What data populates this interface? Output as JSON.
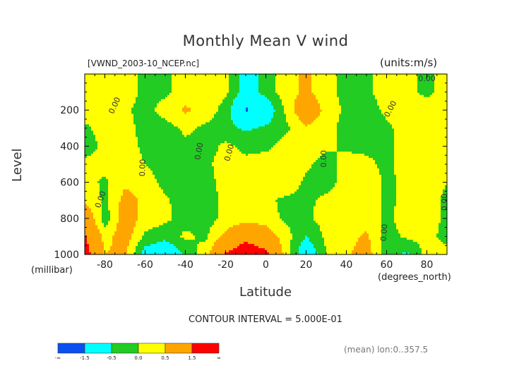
{
  "chart_data": {
    "type": "heatmap",
    "title": "Monthly Mean V wind",
    "subtitle_left": "[VWND_2003-10_NCEP.nc]",
    "subtitle_right": "(units:m/s)",
    "ylabel": "Level",
    "yunit": "(millibar)",
    "xlabel": "Latitude",
    "xunit": "(degrees_north)",
    "xlim": [
      -90,
      90
    ],
    "ylim": [
      1000,
      0
    ],
    "y_inverted": true,
    "x_ticks": [
      -80,
      -60,
      -40,
      -20,
      0,
      20,
      40,
      60,
      80
    ],
    "y_ticks": [
      200,
      400,
      600,
      800,
      1000
    ],
    "contour_label": "0.00",
    "contour_interval_text": "CONTOUR INTERVAL = 5.000E-01",
    "annotation": "(mean) lon:0..357.5",
    "levels": [
      -1.5,
      -1.0,
      -0.5,
      0.0,
      0.5,
      1.0,
      1.5
    ],
    "colorbar_labels": [
      "-∞",
      "-1.5",
      "-0.5",
      "0.0",
      "0.5",
      "1.5",
      "∞"
    ],
    "colorbar_colors": [
      "#0a50f0",
      "#00ffff",
      "#22cc22",
      "#ffff00",
      "#ffa500",
      "#ff0000"
    ],
    "x": [
      -90,
      -80,
      -70,
      -60,
      -50,
      -40,
      -30,
      -20,
      -10,
      0,
      10,
      20,
      30,
      40,
      50,
      60,
      70,
      80,
      90
    ],
    "y": [
      0,
      100,
      200,
      300,
      400,
      500,
      600,
      700,
      800,
      900,
      1000
    ],
    "z": [
      [
        0.2,
        0.3,
        0.2,
        -0.1,
        -0.1,
        0.2,
        0.3,
        0.1,
        -0.8,
        -0.3,
        0.3,
        0.6,
        0.2,
        -0.2,
        -0.1,
        0.2,
        0.1,
        -0.1,
        0.2
      ],
      [
        0.2,
        0.3,
        0.2,
        -0.1,
        -0.1,
        0.2,
        0.3,
        0.1,
        -0.8,
        -0.3,
        0.3,
        0.6,
        0.2,
        -0.2,
        -0.1,
        0.2,
        0.1,
        -0.1,
        0.2
      ],
      [
        0.3,
        0.2,
        0.1,
        -0.2,
        0.2,
        0.6,
        0.3,
        -0.2,
        -1.6,
        -1.0,
        0.1,
        1.1,
        0.3,
        -0.1,
        -0.2,
        0.1,
        0.3,
        0.2,
        0.3
      ],
      [
        -0.1,
        0.2,
        0.2,
        -0.2,
        -0.2,
        0.1,
        -0.1,
        -0.3,
        -0.6,
        -0.4,
        -0.1,
        0.4,
        0.2,
        -0.2,
        -0.3,
        -0.1,
        0.2,
        0.3,
        0.2
      ],
      [
        -0.2,
        0.1,
        0.2,
        -0.1,
        -0.4,
        -0.1,
        -0.2,
        0.1,
        -0.1,
        -0.1,
        0.2,
        0.2,
        0.1,
        -0.1,
        -0.1,
        -0.1,
        0.2,
        0.3,
        0.2
      ],
      [
        0.1,
        0.2,
        0.2,
        0.0,
        -0.3,
        -0.4,
        -0.1,
        0.2,
        0.1,
        0.2,
        0.3,
        0.1,
        -0.2,
        0.2,
        0.1,
        -0.1,
        0.2,
        0.3,
        0.2
      ],
      [
        0.2,
        -0.1,
        0.4,
        0.3,
        -0.2,
        -0.4,
        -0.2,
        0.2,
        0.1,
        0.2,
        0.3,
        -0.1,
        -0.2,
        0.2,
        0.3,
        -0.1,
        0.1,
        0.2,
        0.0
      ],
      [
        0.4,
        -0.1,
        0.7,
        0.4,
        0.1,
        -0.3,
        -0.2,
        0.1,
        0.2,
        0.1,
        -0.1,
        -0.1,
        0.1,
        0.2,
        0.3,
        -0.1,
        0.1,
        0.2,
        -0.1
      ],
      [
        1.2,
        -0.3,
        0.9,
        0.3,
        0.1,
        -0.2,
        -0.2,
        0.1,
        0.3,
        0.2,
        -0.1,
        -0.1,
        0.2,
        0.2,
        0.3,
        -0.1,
        0.2,
        0.2,
        -0.1
      ],
      [
        1.6,
        0.3,
        0.8,
        -0.1,
        -0.3,
        0.1,
        -0.1,
        0.7,
        1.3,
        0.9,
        0.2,
        -0.5,
        0.1,
        0.3,
        0.6,
        -0.2,
        0.1,
        0.1,
        -0.1
      ],
      [
        1.9,
        0.5,
        0.6,
        -0.8,
        -1.2,
        -0.4,
        0.3,
        1.6,
        2.0,
        1.7,
        0.3,
        -1.1,
        0.0,
        0.4,
        0.8,
        -0.3,
        -0.6,
        0.2,
        0.1
      ]
    ]
  }
}
